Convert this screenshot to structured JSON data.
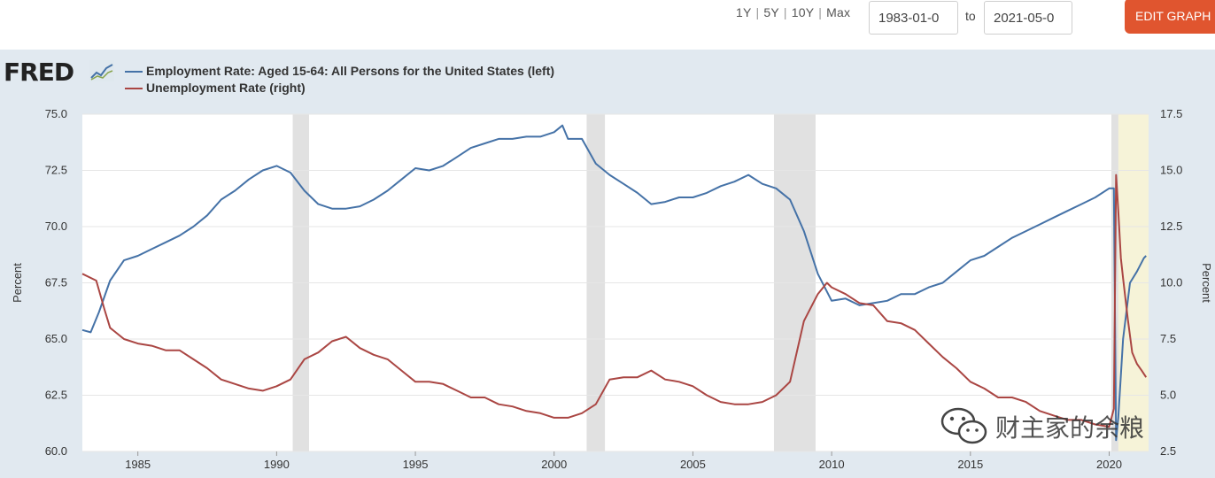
{
  "toolbar": {
    "range_links": [
      "1Y",
      "5Y",
      "10Y",
      "Max"
    ],
    "date_start": "1983-01-0",
    "date_end": "2021-05-0",
    "to_label": "to",
    "edit_graph_label": "EDIT GRAPH"
  },
  "logo": {
    "text": "FRED"
  },
  "watermark": {
    "text": "财主家的余粮"
  },
  "colors": {
    "employment": "#4572a7",
    "unemployment": "#aa4643",
    "recession_shade": "#e1e1e1",
    "highlight_shade": "#f6f3d8",
    "panel_bg": "#e1e9f0",
    "edit_button": "#e0552f"
  },
  "chart_data": {
    "type": "line",
    "legend": [
      "Employment Rate: Aged 15-64: All Persons for the United States (left)",
      "Unemployment Rate (right)"
    ],
    "ylabel_left": "Percent",
    "ylabel_right": "Percent",
    "xlim": [
      1983.0,
      2021.42
    ],
    "ylim_left": [
      60.0,
      75.0
    ],
    "ylim_right": [
      2.5,
      17.5
    ],
    "x_ticks": [
      "1985",
      "1990",
      "1995",
      "2000",
      "2005",
      "2010",
      "2015",
      "2020"
    ],
    "y_left_ticks": [
      "60.0",
      "62.5",
      "65.0",
      "67.5",
      "70.0",
      "72.5",
      "75.0"
    ],
    "y_right_ticks": [
      "2.5",
      "5.0",
      "7.5",
      "10.0",
      "12.5",
      "15.0",
      "17.5"
    ],
    "recessions": [
      [
        1990.58,
        1991.17
      ],
      [
        2001.17,
        2001.83
      ],
      [
        2007.92,
        2009.42
      ],
      [
        2020.08,
        2020.33
      ]
    ],
    "highlight": [
      2020.25,
      2021.42
    ],
    "grid": true,
    "series": [
      {
        "name": "Employment Rate: Aged 15-64: All Persons for the United States (left)",
        "axis": "left",
        "x": [
          1983.0,
          1983.3,
          1983.6,
          1984.0,
          1984.5,
          1985.0,
          1985.5,
          1986.0,
          1986.5,
          1987.0,
          1987.5,
          1988.0,
          1988.5,
          1989.0,
          1989.5,
          1990.0,
          1990.5,
          1991.0,
          1991.5,
          1992.0,
          1992.5,
          1993.0,
          1993.5,
          1994.0,
          1994.5,
          1995.0,
          1995.5,
          1996.0,
          1996.5,
          1997.0,
          1997.5,
          1998.0,
          1998.5,
          1999.0,
          1999.5,
          2000.0,
          2000.3,
          2000.5,
          2001.0,
          2001.5,
          2002.0,
          2002.5,
          2003.0,
          2003.5,
          2004.0,
          2004.5,
          2005.0,
          2005.5,
          2006.0,
          2006.5,
          2007.0,
          2007.5,
          2008.0,
          2008.5,
          2009.0,
          2009.5,
          2010.0,
          2010.5,
          2011.0,
          2011.5,
          2012.0,
          2012.5,
          2013.0,
          2013.5,
          2014.0,
          2014.5,
          2015.0,
          2015.5,
          2016.0,
          2016.5,
          2017.0,
          2017.5,
          2018.0,
          2018.5,
          2019.0,
          2019.5,
          2020.0,
          2020.17,
          2020.25,
          2020.33,
          2020.5,
          2020.75,
          2021.0,
          2021.25,
          2021.33
        ],
        "values": [
          65.4,
          65.3,
          66.2,
          67.6,
          68.5,
          68.7,
          69.0,
          69.3,
          69.6,
          70.0,
          70.5,
          71.2,
          71.6,
          72.1,
          72.5,
          72.7,
          72.4,
          71.6,
          71.0,
          70.8,
          70.8,
          70.9,
          71.2,
          71.6,
          72.1,
          72.6,
          72.5,
          72.7,
          73.1,
          73.5,
          73.7,
          73.9,
          73.9,
          74.0,
          74.0,
          74.2,
          74.5,
          73.9,
          73.9,
          72.8,
          72.3,
          71.9,
          71.5,
          71.0,
          71.1,
          71.3,
          71.3,
          71.5,
          71.8,
          72.0,
          72.3,
          71.9,
          71.7,
          71.2,
          69.8,
          67.9,
          66.7,
          66.8,
          66.5,
          66.6,
          66.7,
          67.0,
          67.0,
          67.3,
          67.5,
          68.0,
          68.5,
          68.7,
          69.1,
          69.5,
          69.8,
          70.1,
          70.4,
          70.7,
          71.0,
          71.3,
          71.7,
          71.7,
          60.5,
          61.5,
          65.0,
          67.5,
          68.0,
          68.6,
          68.7
        ]
      },
      {
        "name": "Unemployment Rate (right)",
        "axis": "right",
        "x": [
          1983.0,
          1983.5,
          1983.8,
          1984.0,
          1984.5,
          1985.0,
          1985.5,
          1986.0,
          1986.5,
          1987.0,
          1987.5,
          1988.0,
          1988.5,
          1989.0,
          1989.5,
          1990.0,
          1990.5,
          1991.0,
          1991.5,
          1992.0,
          1992.5,
          1993.0,
          1993.5,
          1994.0,
          1994.5,
          1995.0,
          1995.5,
          1996.0,
          1996.5,
          1997.0,
          1997.5,
          1998.0,
          1998.5,
          1999.0,
          1999.5,
          2000.0,
          2000.5,
          2001.0,
          2001.5,
          2002.0,
          2002.5,
          2003.0,
          2003.5,
          2004.0,
          2004.5,
          2005.0,
          2005.5,
          2006.0,
          2006.5,
          2007.0,
          2007.5,
          2008.0,
          2008.5,
          2009.0,
          2009.5,
          2009.83,
          2010.0,
          2010.5,
          2011.0,
          2011.5,
          2012.0,
          2012.5,
          2013.0,
          2013.5,
          2014.0,
          2014.5,
          2015.0,
          2015.5,
          2016.0,
          2016.5,
          2017.0,
          2017.5,
          2018.0,
          2018.5,
          2019.0,
          2019.5,
          2020.0,
          2020.17,
          2020.25,
          2020.33,
          2020.42,
          2020.5,
          2020.67,
          2020.83,
          2021.0,
          2021.17,
          2021.33
        ],
        "values": [
          10.4,
          10.1,
          8.8,
          8.0,
          7.5,
          7.3,
          7.2,
          7.0,
          7.0,
          6.6,
          6.2,
          5.7,
          5.5,
          5.3,
          5.2,
          5.4,
          5.7,
          6.6,
          6.9,
          7.4,
          7.6,
          7.1,
          6.8,
          6.6,
          6.1,
          5.6,
          5.6,
          5.5,
          5.2,
          4.9,
          4.9,
          4.6,
          4.5,
          4.3,
          4.2,
          4.0,
          4.0,
          4.2,
          4.6,
          5.7,
          5.8,
          5.8,
          6.1,
          5.7,
          5.6,
          5.4,
          5.0,
          4.7,
          4.6,
          4.6,
          4.7,
          5.0,
          5.6,
          8.3,
          9.5,
          10.0,
          9.8,
          9.5,
          9.1,
          9.0,
          8.3,
          8.2,
          7.9,
          7.3,
          6.7,
          6.2,
          5.6,
          5.3,
          4.9,
          4.9,
          4.7,
          4.3,
          4.1,
          3.9,
          3.9,
          3.7,
          3.6,
          4.4,
          14.8,
          13.2,
          11.1,
          10.2,
          8.4,
          6.9,
          6.4,
          6.1,
          5.8
        ]
      }
    ]
  }
}
